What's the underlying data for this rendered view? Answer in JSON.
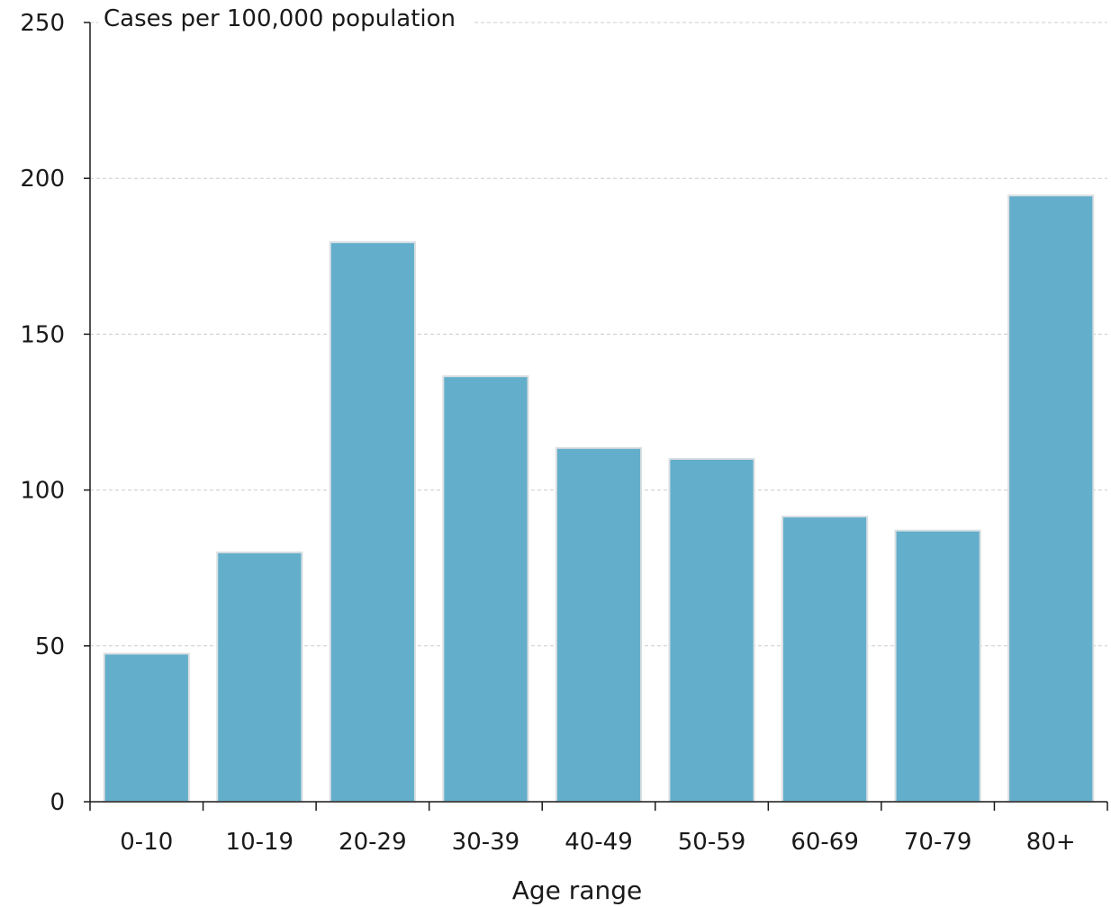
{
  "chart_data": {
    "type": "bar",
    "categories": [
      "0-10",
      "10-19",
      "20-29",
      "30-39",
      "40-49",
      "50-59",
      "60-69",
      "70-79",
      "80+"
    ],
    "values": [
      47.5,
      80,
      179.5,
      136.5,
      113.5,
      110,
      91.5,
      87,
      194.5
    ],
    "title": "",
    "xlabel": "Age range",
    "ylabel": "Cases per 100,000 population",
    "ylim": [
      0,
      250
    ],
    "yticks": [
      0,
      50,
      100,
      150,
      200,
      250
    ],
    "grid": true,
    "legend": "none",
    "colors": {
      "bar": "#63aecb",
      "bar_edge": "#d9dfe2",
      "grid": "#cccccc",
      "axis": "#1a1a1a"
    }
  }
}
